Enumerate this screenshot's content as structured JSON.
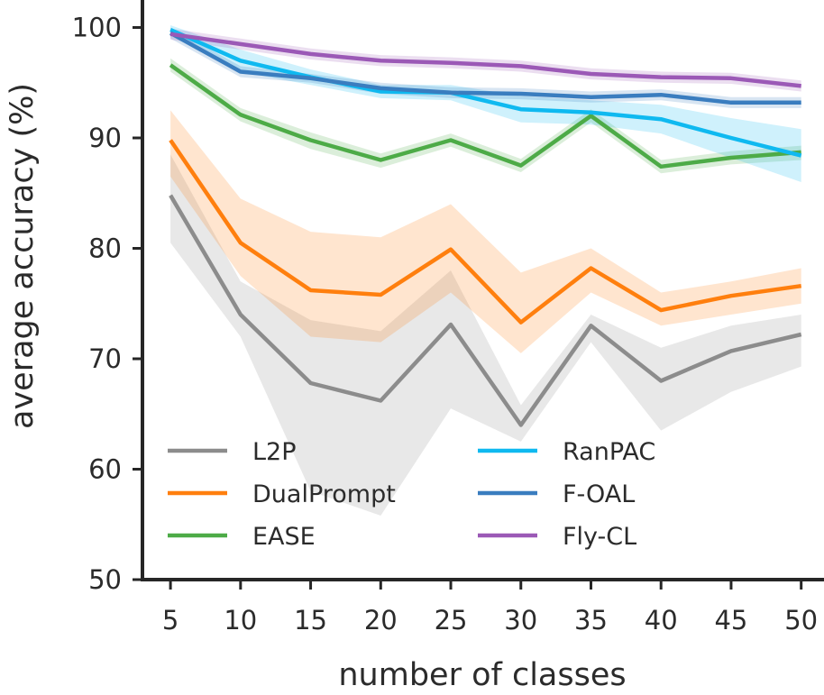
{
  "chart_data": {
    "type": "line",
    "title": "",
    "xlabel": "number of classes",
    "ylabel": "average accuracy (%)",
    "x": [
      5,
      10,
      15,
      20,
      25,
      30,
      35,
      40,
      45,
      50
    ],
    "xlim": [
      3,
      51.5
    ],
    "ylim": [
      50,
      102
    ],
    "xticks": [
      5,
      10,
      15,
      20,
      25,
      30,
      35,
      40,
      45,
      50
    ],
    "yticks": [
      50,
      60,
      70,
      80,
      90,
      100
    ],
    "grid": false,
    "legend": {
      "placement": "bottom-left",
      "columns": 2
    },
    "series": [
      {
        "name": "L2P",
        "color": "#8c8c8c",
        "values": [
          84.8,
          74.0,
          67.8,
          66.2,
          73.1,
          64.0,
          73.0,
          68.0,
          70.7,
          72.2
        ],
        "lower": [
          80.5,
          72.0,
          58.0,
          55.8,
          65.5,
          62.5,
          71.5,
          63.5,
          67.0,
          69.3
        ],
        "upper": [
          88.5,
          77.0,
          73.5,
          72.5,
          78.0,
          65.8,
          74.0,
          71.0,
          73.0,
          74.0
        ]
      },
      {
        "name": "DualPrompt",
        "color": "#ff7f0e",
        "values": [
          89.8,
          80.5,
          76.2,
          75.8,
          79.9,
          73.3,
          78.2,
          74.4,
          75.7,
          76.6
        ],
        "lower": [
          86.5,
          77.5,
          72.0,
          71.5,
          76.0,
          70.5,
          76.0,
          73.0,
          74.0,
          75.0
        ],
        "upper": [
          92.5,
          84.5,
          81.5,
          81.0,
          84.0,
          77.8,
          80.0,
          76.0,
          77.0,
          78.2
        ]
      },
      {
        "name": "EASE",
        "color": "#4dab47",
        "values": [
          96.6,
          92.1,
          89.8,
          88.0,
          89.8,
          87.5,
          92.0,
          87.4,
          88.2,
          88.7
        ],
        "lower": [
          96.0,
          91.5,
          89.0,
          87.3,
          89.2,
          86.9,
          91.4,
          86.8,
          87.6,
          88.0
        ],
        "upper": [
          97.2,
          92.7,
          90.5,
          88.6,
          90.4,
          88.1,
          92.6,
          88.0,
          88.8,
          89.3
        ]
      },
      {
        "name": "RanPAC",
        "color": "#0fb9f0",
        "values": [
          99.8,
          97.0,
          95.5,
          94.2,
          94.1,
          92.6,
          92.3,
          91.7,
          90.0,
          88.4
        ],
        "lower": [
          99.3,
          96.0,
          94.8,
          93.6,
          93.4,
          91.4,
          91.2,
          90.4,
          88.2,
          86.0
        ],
        "upper": [
          100.2,
          98.0,
          96.2,
          94.8,
          94.8,
          93.8,
          93.4,
          93.0,
          91.8,
          90.8
        ]
      },
      {
        "name": "F-OAL",
        "color": "#3a7dbf",
        "values": [
          99.5,
          96.0,
          95.4,
          94.5,
          94.1,
          94.0,
          93.7,
          93.9,
          93.2,
          93.2
        ],
        "lower": [
          99.0,
          95.5,
          95.0,
          94.0,
          93.6,
          93.5,
          93.2,
          93.4,
          92.7,
          92.7
        ],
        "upper": [
          100.0,
          96.5,
          95.8,
          95.0,
          94.6,
          94.5,
          94.2,
          94.4,
          93.7,
          93.7
        ]
      },
      {
        "name": "Fly-CL",
        "color": "#9b59b6",
        "values": [
          99.4,
          98.5,
          97.6,
          97.0,
          96.8,
          96.5,
          95.8,
          95.5,
          95.4,
          94.7
        ],
        "lower": [
          98.9,
          98.0,
          97.1,
          96.5,
          96.3,
          96.0,
          95.3,
          95.0,
          94.9,
          94.2
        ],
        "upper": [
          99.9,
          99.0,
          98.1,
          97.5,
          97.3,
          97.0,
          96.3,
          96.0,
          95.9,
          95.2
        ]
      }
    ]
  }
}
